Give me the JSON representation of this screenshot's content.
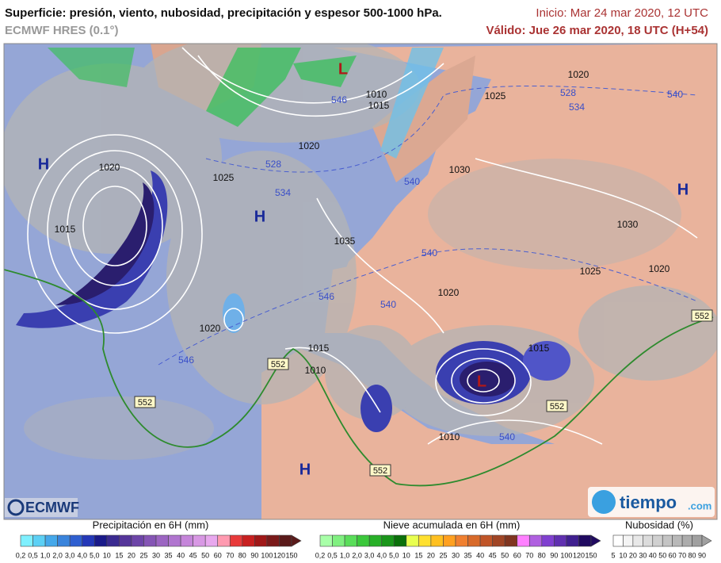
{
  "header": {
    "title": "Superficie: presión, viento, nubosidad, precipitación y espesor 500-1000 hPa.",
    "model": "ECMWF HRES (0.1°)",
    "init": "Inicio: Mar 24 mar 2020, 12 UTC",
    "valid": "Válido: Jue 26 mar 2020, 18 UTC (H+54)"
  },
  "map": {
    "isobar_labels": [
      "1020",
      "1025",
      "1010",
      "1015",
      "1020",
      "1020",
      "1025",
      "1030",
      "1015",
      "1035",
      "1030",
      "1025",
      "1020",
      "1020",
      "1020",
      "1015",
      "1010",
      "1010",
      "1015"
    ],
    "thickness_labels": [
      "528",
      "534",
      "540",
      "546",
      "528",
      "534",
      "540",
      "540",
      "540",
      "546",
      "546",
      "540"
    ],
    "thickness_boxes": [
      "552",
      "552",
      "552",
      "552",
      "552"
    ],
    "highs": [
      "H",
      "H",
      "H",
      "H"
    ],
    "lows": [
      "L",
      "L"
    ]
  },
  "logos": {
    "ecmwf": "ECMWF",
    "tiempo": "tiempo",
    "tiempo_suffix": ".com"
  },
  "legends": {
    "precipitation": {
      "title": "Precipitación en 6H (mm)",
      "ticks": [
        "0,2",
        "0,5",
        "1,0",
        "2,0",
        "3,0",
        "4,0",
        "5,0",
        "10",
        "15",
        "20",
        "25",
        "30",
        "35",
        "40",
        "45",
        "50",
        "60",
        "70",
        "80",
        "90",
        "100",
        "120",
        "150"
      ]
    },
    "snow": {
      "title": "Nieve acumulada en 6H (mm)",
      "ticks": [
        "0,2",
        "0,5",
        "1,0",
        "2,0",
        "3,0",
        "4,0",
        "5,0",
        "10",
        "15",
        "20",
        "25",
        "30",
        "35",
        "40",
        "45",
        "50",
        "60",
        "70",
        "80",
        "90",
        "100",
        "120",
        "150"
      ]
    },
    "cloud": {
      "title": "Nubosidad (%)",
      "ticks": [
        "5",
        "10",
        "20",
        "30",
        "40",
        "50",
        "60",
        "70",
        "80",
        "90"
      ]
    }
  }
}
